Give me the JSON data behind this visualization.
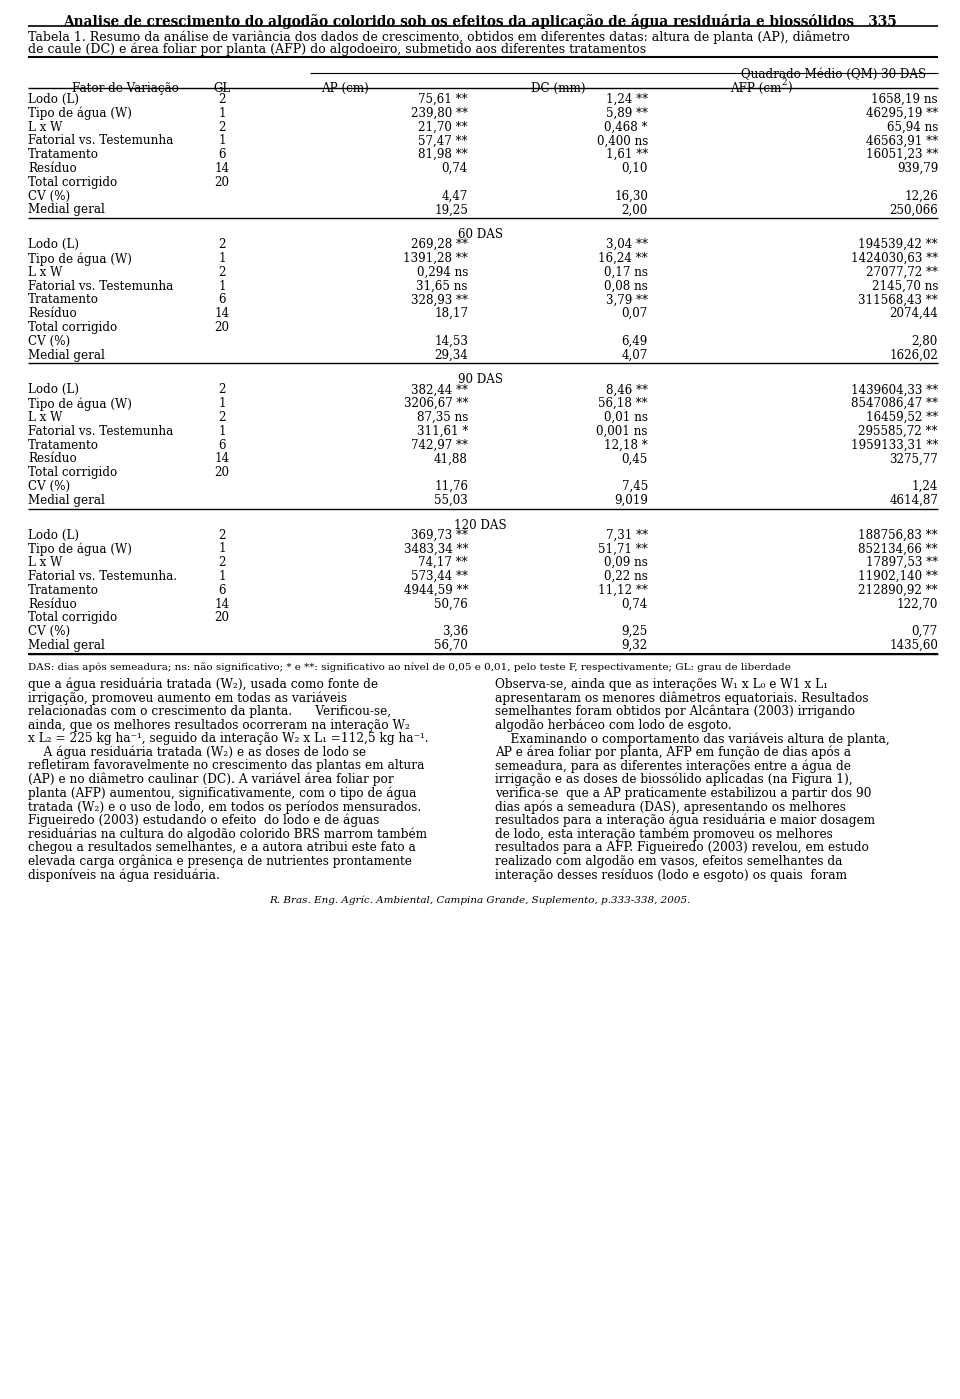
{
  "title": "Analise de crescimento do algodão colorido sob os efeitos da aplicação de água residuária e biossólidos   335",
  "caption_line1": "Tabela 1. Resumo da análise de variância dos dados de crescimento, obtidos em diferentes datas: altura de planta (AP), diâmetro",
  "caption_line2": "de caule (DC) e área foliar por planta (AFP) do algodoeiro, submetido aos diferentes tratamentos",
  "sections": [
    {
      "das_header": "Quadrado Médio (QM) 30 DAS",
      "rows": [
        [
          "Lodo (L)",
          "2",
          "75,61 **",
          "1,24 **",
          "1658,19 ns"
        ],
        [
          "Tipo de água (W)",
          "1",
          "239,80 **",
          "5,89 **",
          "46295,19 **"
        ],
        [
          "L x W",
          "2",
          "21,70 **",
          "0,468 *",
          "65,94 ns"
        ],
        [
          "Fatorial vs. Testemunha",
          "1",
          "57,47 **",
          "0,400 ns",
          "46563,91 **"
        ],
        [
          "Tratamento",
          "6",
          "81,98 **",
          "1,61 **",
          "16051,23 **"
        ],
        [
          "Resíduo",
          "14",
          "0,74",
          "0,10",
          "939,79"
        ],
        [
          "Total corrigido",
          "20",
          "",
          "",
          ""
        ],
        [
          "CV (%)",
          "",
          "4,47",
          "16,30",
          "12,26"
        ],
        [
          "Medial geral",
          "",
          "19,25",
          "2,00",
          "250,066"
        ]
      ]
    },
    {
      "das_header": "60 DAS",
      "rows": [
        [
          "Lodo (L)",
          "2",
          "269,28 **",
          "3,04 **",
          "194539,42 **"
        ],
        [
          "Tipo de água (W)",
          "1",
          "1391,28 **",
          "16,24 **",
          "1424030,63 **"
        ],
        [
          "L x W",
          "2",
          "0,294 ns",
          "0,17 ns",
          "27077,72 **"
        ],
        [
          "Fatorial vs. Testemunha",
          "1",
          "31,65 ns",
          "0,08 ns",
          "2145,70 ns"
        ],
        [
          "Tratamento",
          "6",
          "328,93 **",
          "3,79 **",
          "311568,43 **"
        ],
        [
          "Resíduo",
          "14",
          "18,17",
          "0,07",
          "2074,44"
        ],
        [
          "Total corrigido",
          "20",
          "",
          "",
          ""
        ],
        [
          "CV (%)",
          "",
          "14,53",
          "6,49",
          "2,80"
        ],
        [
          "Medial geral",
          "",
          "29,34",
          "4,07",
          "1626,02"
        ]
      ]
    },
    {
      "das_header": "90 DAS",
      "rows": [
        [
          "Lodo (L)",
          "2",
          "382,44 **",
          "8,46 **",
          "1439604,33 **"
        ],
        [
          "Tipo de água (W)",
          "1",
          "3206,67 **",
          "56,18 **",
          "8547086,47 **"
        ],
        [
          "L x W",
          "2",
          "87,35 ns",
          "0,01 ns",
          "16459,52 **"
        ],
        [
          "Fatorial vs. Testemunha",
          "1",
          "311,61 *",
          "0,001 ns",
          "295585,72 **"
        ],
        [
          "Tratamento",
          "6",
          "742,97 **",
          "12,18 *",
          "1959133,31 **"
        ],
        [
          "Resíduo",
          "14",
          "41,88",
          "0,45",
          "3275,77"
        ],
        [
          "Total corrigido",
          "20",
          "",
          "",
          ""
        ],
        [
          "CV (%)",
          "",
          "11,76",
          "7,45",
          "1,24"
        ],
        [
          "Medial geral",
          "",
          "55,03",
          "9,019",
          "4614,87"
        ]
      ]
    },
    {
      "das_header": "120 DAS",
      "rows": [
        [
          "Lodo (L)",
          "2",
          "369,73 **",
          "7,31 **",
          "188756,83 **"
        ],
        [
          "Tipo de água (W)",
          "1",
          "3483,34 **",
          "51,71 **",
          "852134,66 **"
        ],
        [
          "L x W",
          "2",
          "74,17 **",
          "0,09 ns",
          "17897,53 **"
        ],
        [
          "Fatorial vs. Testemunha.",
          "1",
          "573,44 **",
          "0,22 ns",
          "11902,140 **"
        ],
        [
          "Tratamento",
          "6",
          "4944,59 **",
          "11,12 **",
          "212890,92 **"
        ],
        [
          "Resíduo",
          "14",
          "50,76",
          "0,74",
          "122,70"
        ],
        [
          "Total corrigido",
          "20",
          "",
          "",
          ""
        ],
        [
          "CV (%)",
          "",
          "3,36",
          "9,25",
          "0,77"
        ],
        [
          "Medial geral",
          "",
          "56,70",
          "9,32",
          "1435,60"
        ]
      ]
    }
  ],
  "footnote": "DAS: dias após semeadura; ns: não significativo; * e **: significativo ao nível de 0,05 e 0,01, pelo teste F, respectivamente; GL: grau de liberdade",
  "text_left": [
    "que a água residuária tratada (W₂), usada como fonte de",
    "irrigação, promoveu aumento em todas as variáveis",
    "relacionadas com o crescimento da planta.      Verificou-se,",
    "ainda, que os melhores resultados ocorreram na interação W₂",
    "x L₂ = 225 kg ha⁻¹, seguido da interação W₂ x L₁ =112,5 kg ha⁻¹.",
    "    A água residuária tratada (W₂) e as doses de lodo se",
    "refletiram favoravelmente no crescimento das plantas em altura",
    "(AP) e no diâmetro caulinar (DC). A variável área foliar por",
    "planta (AFP) aumentou, significativamente, com o tipo de água",
    "tratada (W₂) e o uso de lodo, em todos os períodos mensurados.",
    "Figueiredo (2003) estudando o efeito  do lodo e de águas",
    "residuárias na cultura do algodão colorido BRS marrom também",
    "chegou a resultados semelhantes, e a autora atribui este fato a",
    "elevada carga orgânica e presença de nutrientes prontamente",
    "disponíveis na água residuária."
  ],
  "text_right": [
    "Observa-se, ainda que as interações W₁ x L₀ e W1 x L₁",
    "apresentaram os menores diâmetros equatoriais. Resultados",
    "semelhantes foram obtidos por Alcântara (2003) irrigando",
    "algodão herbáceo com lodo de esgoto.",
    "    Examinando o comportamento das variáveis altura de planta,",
    "AP e área foliar por planta, AFP em função de dias após a",
    "semeadura, para as diferentes interações entre a água de",
    "irrigação e as doses de biossólido aplicadas (na Figura 1),",
    "verifica-se  que a AP praticamente estabilizou a partir dos 90",
    "dias após a semeadura (DAS), apresentando os melhores",
    "resultados para a interação água residuária e maior dosagem",
    "de lodo, esta interação também promoveu os melhores",
    "resultados para a AFP. Figueiredo (2003) revelou, em estudo",
    "realizado com algodão em vasos, efeitos semelhantes da",
    "interação desses resíduos (lodo e esgoto) os quais  foram"
  ],
  "bottom_text": "R. Bras. Eng. Agríc. Ambiental, Campina Grande, Suplemento, p.333-338, 2005."
}
